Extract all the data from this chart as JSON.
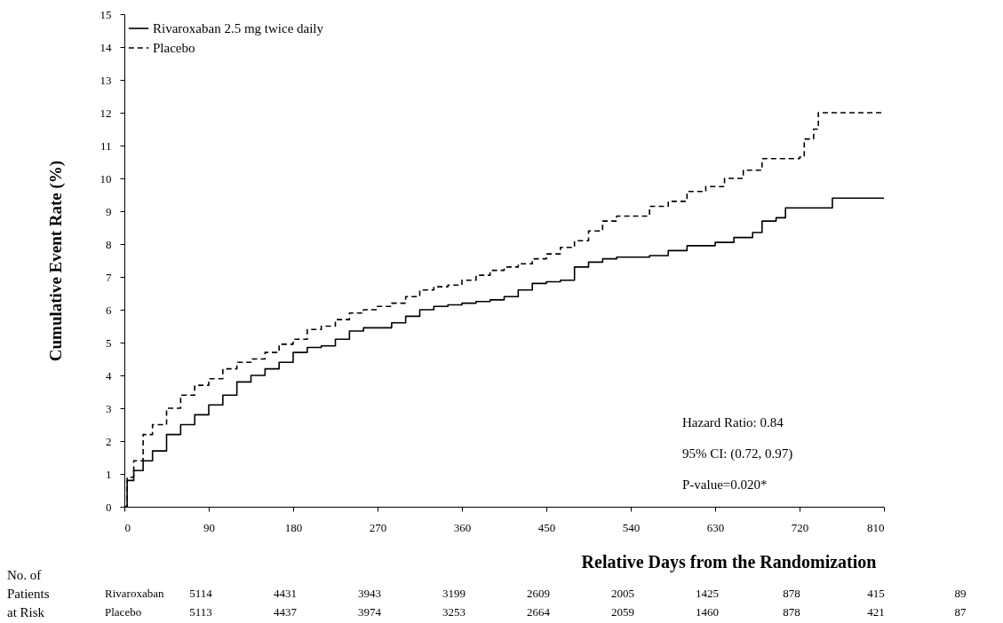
{
  "chart_data": {
    "type": "step",
    "xlabel": "Relative Days from the Randomization",
    "ylabel": "Cumulative Event Rate (%)",
    "xlim": [
      0,
      810
    ],
    "xticks": [
      0,
      90,
      180,
      270,
      360,
      450,
      540,
      630,
      720,
      810
    ],
    "ylim": [
      0,
      15
    ],
    "yticks": [
      0,
      1,
      2,
      3,
      4,
      5,
      6,
      7,
      8,
      9,
      10,
      11,
      12,
      13,
      14,
      15
    ],
    "legend": "top left",
    "series": [
      {
        "name": "Rivaroxaban 2.5 mg twice daily",
        "color": "#000000",
        "line_style": "solid",
        "x": [
          0,
          3,
          10,
          20,
          30,
          45,
          60,
          75,
          90,
          105,
          120,
          135,
          150,
          165,
          180,
          195,
          210,
          225,
          240,
          255,
          270,
          285,
          300,
          315,
          330,
          345,
          360,
          375,
          390,
          405,
          420,
          435,
          450,
          465,
          480,
          495,
          510,
          525,
          540,
          560,
          580,
          600,
          630,
          650,
          670,
          680,
          695,
          705,
          752,
          755,
          810
        ],
        "values": [
          0,
          0.8,
          1.1,
          1.4,
          1.7,
          2.2,
          2.5,
          2.8,
          3.1,
          3.4,
          3.8,
          4.0,
          4.2,
          4.4,
          4.7,
          4.85,
          4.9,
          5.1,
          5.35,
          5.45,
          5.45,
          5.6,
          5.8,
          6.0,
          6.1,
          6.15,
          6.2,
          6.25,
          6.3,
          6.4,
          6.6,
          6.8,
          6.85,
          6.9,
          7.3,
          7.45,
          7.55,
          7.6,
          7.6,
          7.65,
          7.8,
          7.95,
          8.05,
          8.2,
          8.35,
          8.7,
          8.8,
          9.1,
          9.1,
          9.4,
          9.4
        ]
      },
      {
        "name": "Placebo",
        "color": "#000000",
        "line_style": "dashed",
        "x": [
          0,
          3,
          10,
          20,
          30,
          45,
          60,
          75,
          90,
          105,
          120,
          135,
          150,
          165,
          180,
          195,
          210,
          225,
          240,
          255,
          270,
          285,
          300,
          315,
          330,
          345,
          360,
          375,
          390,
          405,
          420,
          435,
          450,
          465,
          480,
          495,
          510,
          525,
          540,
          560,
          580,
          600,
          620,
          640,
          660,
          680,
          720,
          725,
          735,
          740,
          810
        ],
        "values": [
          0,
          0.9,
          1.4,
          2.2,
          2.5,
          3.0,
          3.4,
          3.7,
          3.9,
          4.2,
          4.4,
          4.5,
          4.7,
          4.95,
          5.1,
          5.4,
          5.5,
          5.7,
          5.9,
          6.0,
          6.1,
          6.2,
          6.4,
          6.6,
          6.7,
          6.75,
          6.9,
          7.05,
          7.2,
          7.3,
          7.4,
          7.55,
          7.7,
          7.9,
          8.1,
          8.4,
          8.7,
          8.85,
          8.85,
          9.15,
          9.3,
          9.6,
          9.75,
          10.0,
          10.25,
          10.6,
          10.65,
          11.2,
          11.5,
          12.0,
          12.0
        ]
      }
    ],
    "annotations": [
      "Hazard Ratio: 0.84",
      "95% CI: (0.72, 0.97)",
      "P-value=0.020*",
      "No. of Patients at Risk",
      "Rivaroxaban 5114 4431 3943 3199 2609 2005 1425 878 415 89",
      "Placebo 5113 4437 3974 3253 2664 2059 1460 878 421 87"
    ]
  }
}
